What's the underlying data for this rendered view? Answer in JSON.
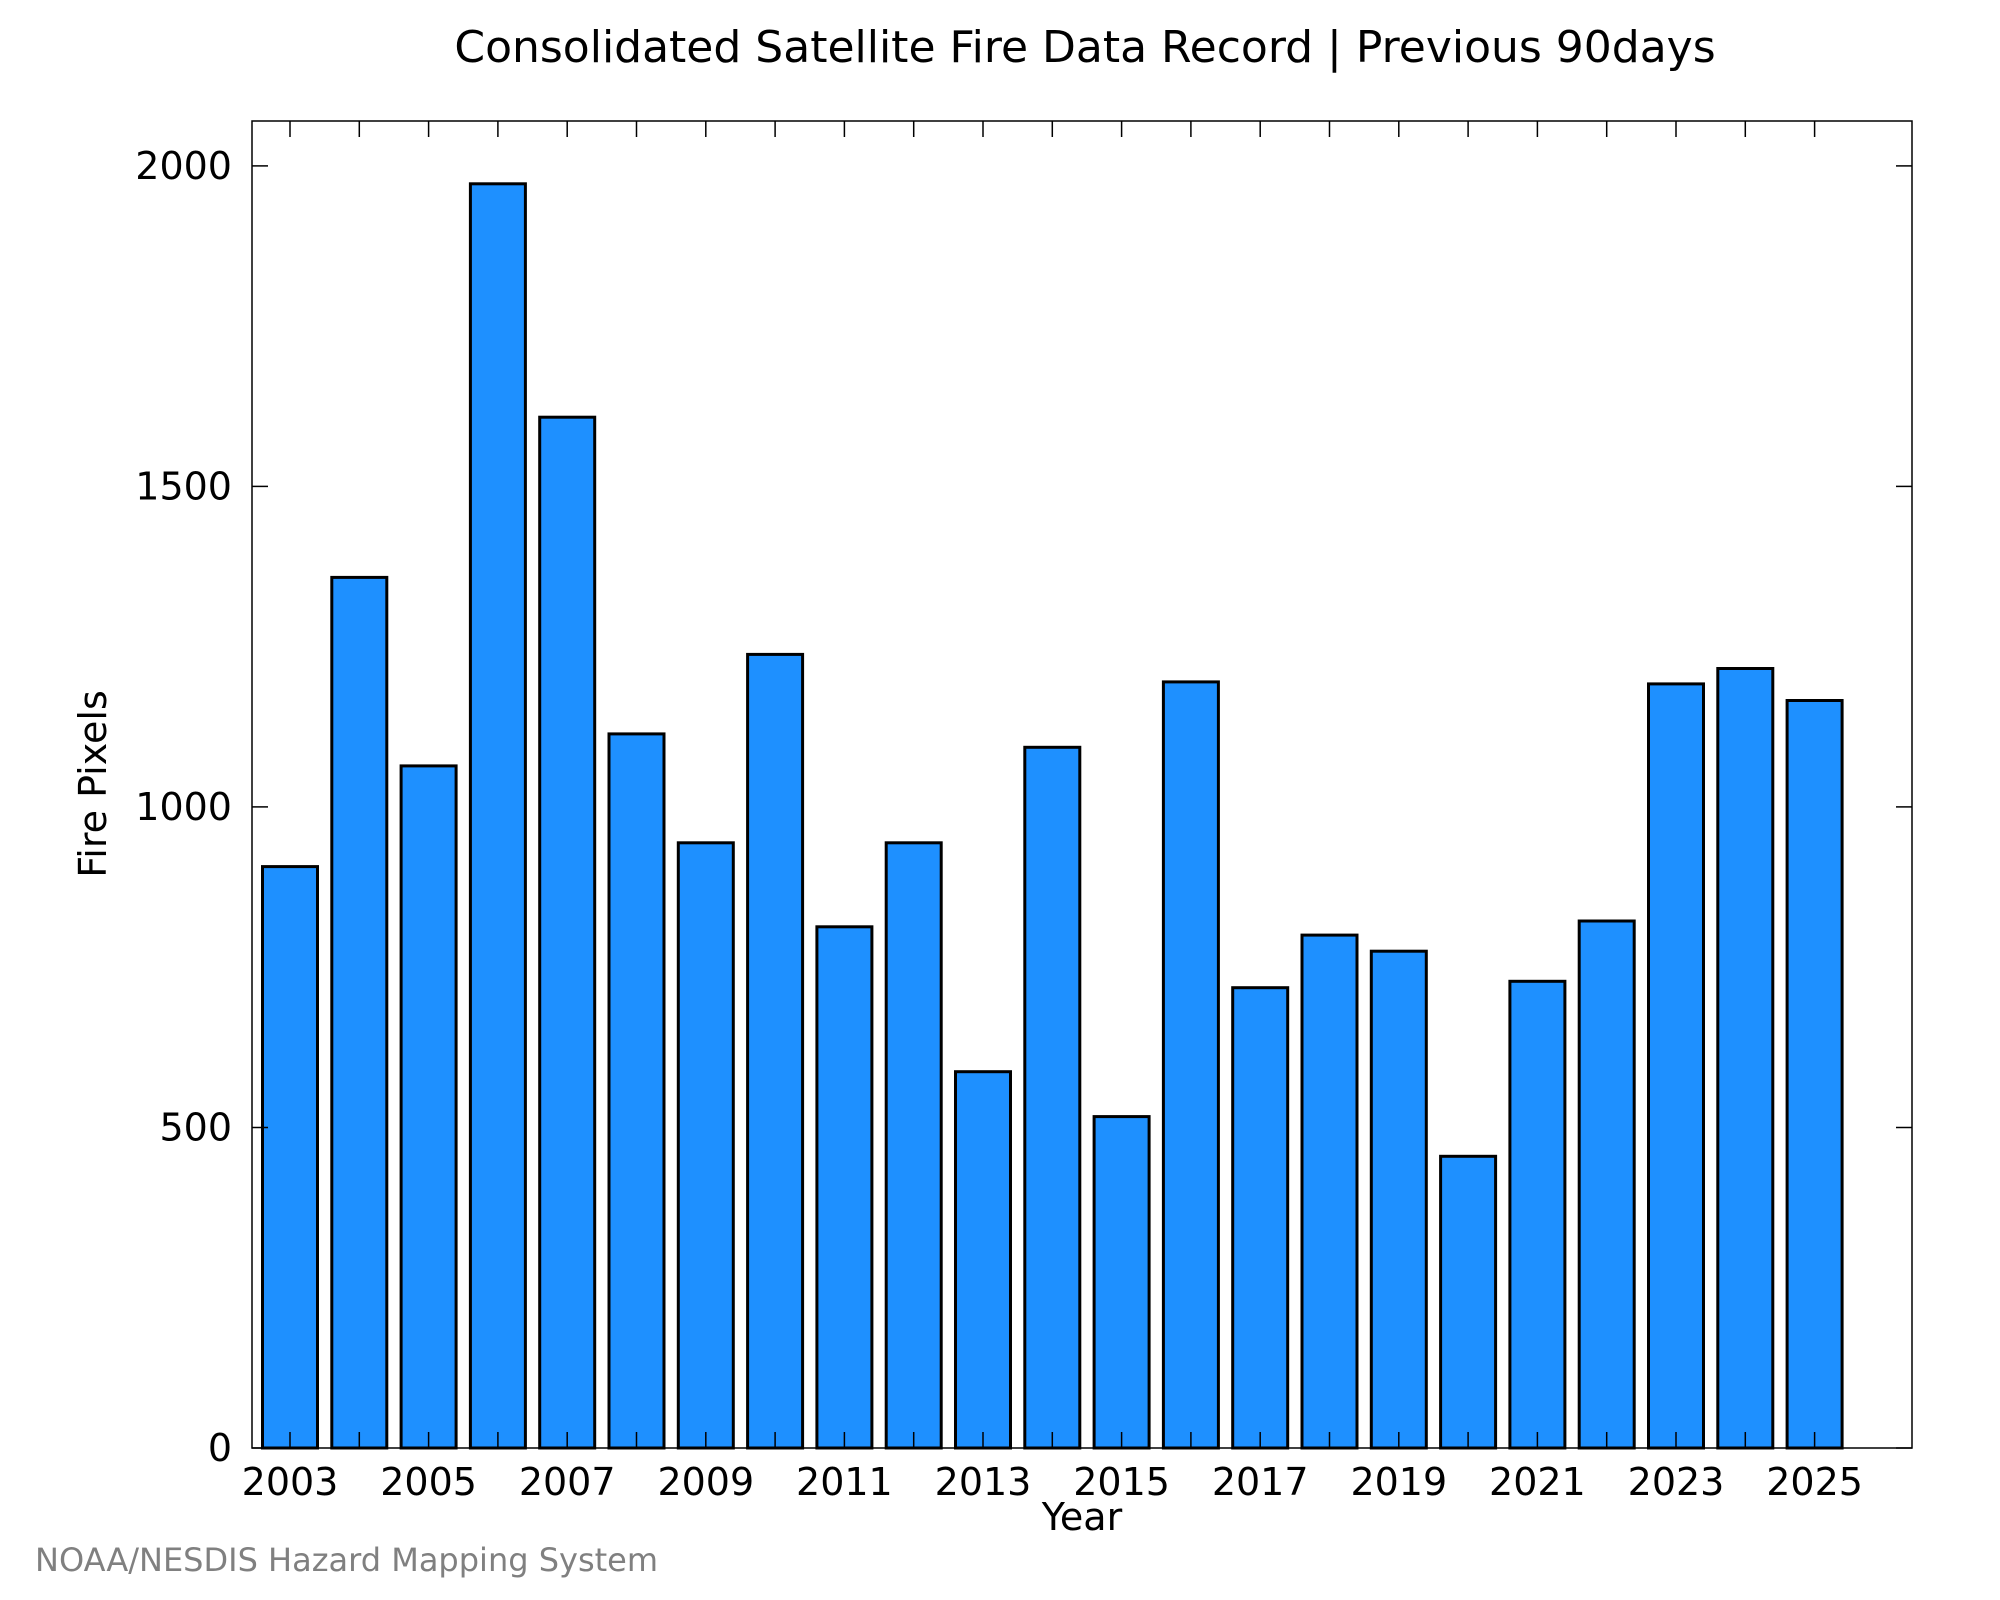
{
  "chart_data": {
    "type": "bar",
    "title": "Consolidated Satellite Fire Data Record | Previous 90days",
    "xlabel": "Year",
    "ylabel": "Fire Pixels",
    "categories": [
      "2003",
      "2004",
      "2005",
      "2006",
      "2007",
      "2008",
      "2009",
      "2010",
      "2011",
      "2012",
      "2013",
      "2014",
      "2015",
      "2016",
      "2017",
      "2018",
      "2019",
      "2020",
      "2021",
      "2022",
      "2023",
      "2024",
      "2025"
    ],
    "values": [
      907,
      1358,
      1064,
      1972,
      1608,
      1114,
      944,
      1238,
      813,
      944,
      587,
      1093,
      517,
      1195,
      718,
      800,
      775,
      455,
      728,
      822,
      1192,
      1216,
      1166
    ],
    "x_tick_labels": [
      "2003",
      "2005",
      "2007",
      "2009",
      "2011",
      "2013",
      "2015",
      "2017",
      "2019",
      "2021",
      "2023",
      "2025"
    ],
    "y_tick_labels": [
      "0",
      "500",
      "1000",
      "1500",
      "2000"
    ],
    "ylim": [
      0,
      2070
    ],
    "bar_color": "#1E90FF",
    "bar_edge_color": "#000000",
    "grid": false,
    "legend": null
  },
  "footer": {
    "source": "NOAA/NESDIS Hazard Mapping System"
  }
}
